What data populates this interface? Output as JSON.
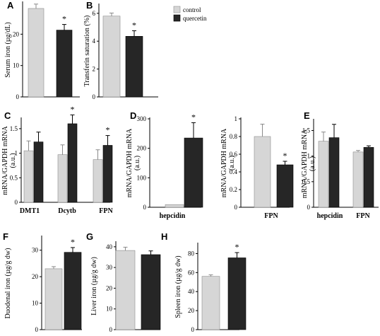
{
  "legend": [
    {
      "label": "control",
      "color": "#d6d6d6"
    },
    {
      "label": "quercetin",
      "color": "#262626"
    }
  ],
  "colors": {
    "control": "#d6d6d6",
    "quercetin": "#262626",
    "edge": "#8a8a8a"
  },
  "chart_data": [
    {
      "panel": "A",
      "type": "bar",
      "ylabel": "Serum iron (µg/dL)",
      "categories": [
        ""
      ],
      "ylim": [
        0,
        30
      ],
      "yticks": [
        0,
        10,
        20
      ],
      "series": [
        {
          "name": "control",
          "values": [
            28.2
          ],
          "errors": [
            1.4
          ]
        },
        {
          "name": "quercetin",
          "values": [
            21.3
          ],
          "errors": [
            1.8
          ]
        }
      ],
      "significance": [
        "*"
      ]
    },
    {
      "panel": "B",
      "type": "bar",
      "ylabel": "Transferin saturation (%)",
      "categories": [
        ""
      ],
      "ylim": [
        0,
        6.6
      ],
      "yticks": [
        0,
        2,
        4,
        6
      ],
      "series": [
        {
          "name": "control",
          "values": [
            5.8
          ],
          "errors": [
            0.22
          ]
        },
        {
          "name": "quercetin",
          "values": [
            4.35
          ],
          "errors": [
            0.4
          ]
        }
      ],
      "significance": [
        "*"
      ]
    },
    {
      "panel": "C",
      "type": "bar",
      "ylabel": "mRNA/GAPDH mRNA (a.u.)",
      "categories": [
        "DMT1",
        "Dcytb",
        "FPN"
      ],
      "ylim": [
        0,
        1.7
      ],
      "yticks": [
        0,
        0.5,
        1,
        1.5
      ],
      "ytick_labels": [
        "0",
        "0.5",
        "1",
        "1.5"
      ],
      "series": [
        {
          "name": "control",
          "values": [
            1.05,
            0.97,
            0.87
          ],
          "errors": [
            0.2,
            0.2,
            0.2
          ]
        },
        {
          "name": "quercetin",
          "values": [
            1.23,
            1.6,
            1.16
          ],
          "errors": [
            0.2,
            0.18,
            0.2
          ]
        }
      ],
      "significance": [
        "",
        "*",
        "*"
      ]
    },
    {
      "panel": "D",
      "type": "bar",
      "ylabel": "mRNA/GAPDH mRNA (a.u.)",
      "categories": [
        "hepcidin"
      ],
      "ylim": [
        0,
        300
      ],
      "yticks": [
        0,
        100,
        200,
        300
      ],
      "series": [
        {
          "name": "control",
          "values": [
            9
          ],
          "errors": [
            0
          ]
        },
        {
          "name": "quercetin",
          "values": [
            235
          ],
          "errors": [
            52
          ]
        }
      ],
      "significance": [
        "*"
      ]
    },
    {
      "panel": "D2",
      "type": "bar",
      "ylabel": "mRNA/GAPDH mRNA (a.u.)",
      "categories": [
        "FPN"
      ],
      "ylim": [
        0,
        1.0
      ],
      "yticks": [
        0,
        0.2,
        0.4,
        0.6,
        0.8,
        1
      ],
      "ytick_labels": [
        "0",
        "0.2",
        "0.4",
        "0.6",
        "0.8",
        "1"
      ],
      "series": [
        {
          "name": "control",
          "values": [
            0.8
          ],
          "errors": [
            0.14
          ]
        },
        {
          "name": "quercetin",
          "values": [
            0.48
          ],
          "errors": [
            0.04
          ]
        }
      ],
      "significance": [
        "*"
      ]
    },
    {
      "panel": "E",
      "type": "bar",
      "ylabel": "mRNA/GAPDH mRNA (a.u.)",
      "categories": [
        "hepcidin",
        "FPN"
      ],
      "ylim": [
        0,
        1.7
      ],
      "yticks": [
        0,
        0.5,
        1,
        1.5
      ],
      "ytick_labels": [
        "0",
        "0.5",
        "1",
        "1.5"
      ],
      "series": [
        {
          "name": "control",
          "values": [
            1.29,
            1.08
          ],
          "errors": [
            0.18,
            0.03
          ]
        },
        {
          "name": "quercetin",
          "values": [
            1.36,
            1.17
          ],
          "errors": [
            0.26,
            0.03
          ]
        }
      ],
      "significance": [
        "",
        ""
      ]
    },
    {
      "panel": "F",
      "type": "bar",
      "ylabel": "Duodenal iron (µg/g dw)",
      "categories": [
        ""
      ],
      "ylim": [
        0,
        35
      ],
      "yticks": [
        0,
        10,
        20,
        30
      ],
      "series": [
        {
          "name": "control",
          "values": [
            23
          ],
          "errors": [
            0.8
          ]
        },
        {
          "name": "quercetin",
          "values": [
            29.2
          ],
          "errors": [
            1.8
          ]
        }
      ],
      "significance": [
        "*"
      ]
    },
    {
      "panel": "G",
      "type": "bar",
      "ylabel": "Liver iron (µg/g dw)",
      "categories": [
        ""
      ],
      "ylim": [
        0,
        42
      ],
      "yticks": [
        0,
        10,
        20,
        30,
        40
      ],
      "series": [
        {
          "name": "control",
          "values": [
            38.2
          ],
          "errors": [
            1.6
          ]
        },
        {
          "name": "quercetin",
          "values": [
            36.2
          ],
          "errors": [
            1.8
          ]
        }
      ],
      "significance": [
        ""
      ]
    },
    {
      "panel": "H",
      "type": "bar",
      "ylabel": "Spleen iron (µg/g dw)",
      "categories": [
        ""
      ],
      "ylim": [
        0,
        90
      ],
      "yticks": [
        0,
        20,
        40,
        60,
        80
      ],
      "series": [
        {
          "name": "control",
          "values": [
            56
          ],
          "errors": [
            1.6
          ]
        },
        {
          "name": "quercetin",
          "values": [
            75.5
          ],
          "errors": [
            5.5
          ]
        }
      ],
      "significance": [
        "*"
      ]
    }
  ]
}
